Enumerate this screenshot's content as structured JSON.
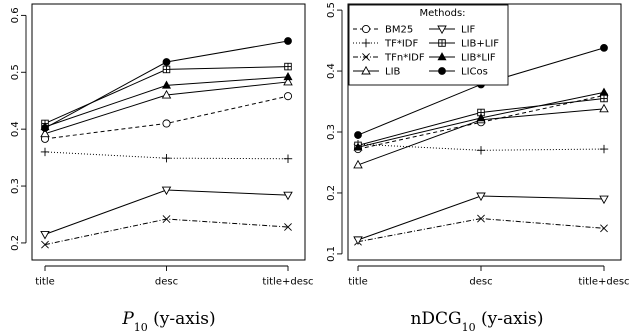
{
  "styles": {
    "BM25": {
      "marker": "circle",
      "dash": "4,3"
    },
    "TF*IDF": {
      "marker": "plus",
      "dash": "1,2"
    },
    "TFn*IDF": {
      "marker": "x",
      "dash": "5,2,1,2"
    },
    "LIB": {
      "marker": "triangle-up",
      "dash": ""
    },
    "LIF": {
      "marker": "triangle-down",
      "dash": ""
    },
    "LIB+LIF": {
      "marker": "boxplus",
      "dash": ""
    },
    "LIB*LIF": {
      "marker": "triangle-up-filled",
      "dash": ""
    },
    "LICos": {
      "marker": "dot",
      "dash": ""
    }
  },
  "chart_data": [
    {
      "type": "line",
      "categories": [
        "title",
        "desc",
        "title+desc"
      ],
      "xlabel": "P10 (y-axis)",
      "xlabel_parts": {
        "base": "P",
        "sub": "10",
        "rest": " (y-axis)"
      },
      "ylim": [
        0.17,
        0.62
      ],
      "yticks": [
        0.2,
        0.3,
        0.4,
        0.5,
        0.6
      ],
      "ytick_labels": [
        "0.2",
        "0.3",
        "0.4",
        "0.5",
        "0.6"
      ],
      "series": [
        {
          "name": "BM25",
          "values": [
            0.383,
            0.41,
            0.458
          ]
        },
        {
          "name": "TF*IDF",
          "values": [
            0.36,
            0.349,
            0.348
          ]
        },
        {
          "name": "TFn*IDF",
          "values": [
            0.197,
            0.242,
            0.228
          ]
        },
        {
          "name": "LIB",
          "values": [
            0.392,
            0.46,
            0.483
          ]
        },
        {
          "name": "LIF",
          "values": [
            0.215,
            0.293,
            0.284
          ]
        },
        {
          "name": "LIB+LIF",
          "values": [
            0.41,
            0.505,
            0.51
          ]
        },
        {
          "name": "LIB*LIF",
          "values": [
            0.404,
            0.477,
            0.492
          ]
        },
        {
          "name": "LICos",
          "values": [
            0.402,
            0.518,
            0.555
          ]
        }
      ]
    },
    {
      "type": "line",
      "categories": [
        "title",
        "desc",
        "title+desc"
      ],
      "xlabel": "nDCG10 (y-axis)",
      "xlabel_parts": {
        "base": "nDCG",
        "sub": "10",
        "rest": " (y-axis)"
      },
      "ylim": [
        0.09,
        0.51
      ],
      "yticks": [
        0.1,
        0.2,
        0.3,
        0.4,
        0.5
      ],
      "ytick_labels": [
        "0.1",
        "0.2",
        "0.3",
        "0.4",
        "0.5"
      ],
      "legend": {
        "title": "Methods:",
        "placement": "top-left"
      },
      "series": [
        {
          "name": "BM25",
          "values": [
            0.272,
            0.316,
            0.36
          ]
        },
        {
          "name": "TF*IDF",
          "values": [
            0.28,
            0.27,
            0.272
          ]
        },
        {
          "name": "TFn*IDF",
          "values": [
            0.12,
            0.158,
            0.142
          ]
        },
        {
          "name": "LIB",
          "values": [
            0.246,
            0.32,
            0.338
          ]
        },
        {
          "name": "LIF",
          "values": [
            0.123,
            0.195,
            0.19
          ]
        },
        {
          "name": "LIB+LIF",
          "values": [
            0.278,
            0.332,
            0.355
          ]
        },
        {
          "name": "LIB*LIF",
          "values": [
            0.275,
            0.323,
            0.365
          ]
        },
        {
          "name": "LICos",
          "values": [
            0.295,
            0.378,
            0.438
          ]
        }
      ]
    }
  ]
}
